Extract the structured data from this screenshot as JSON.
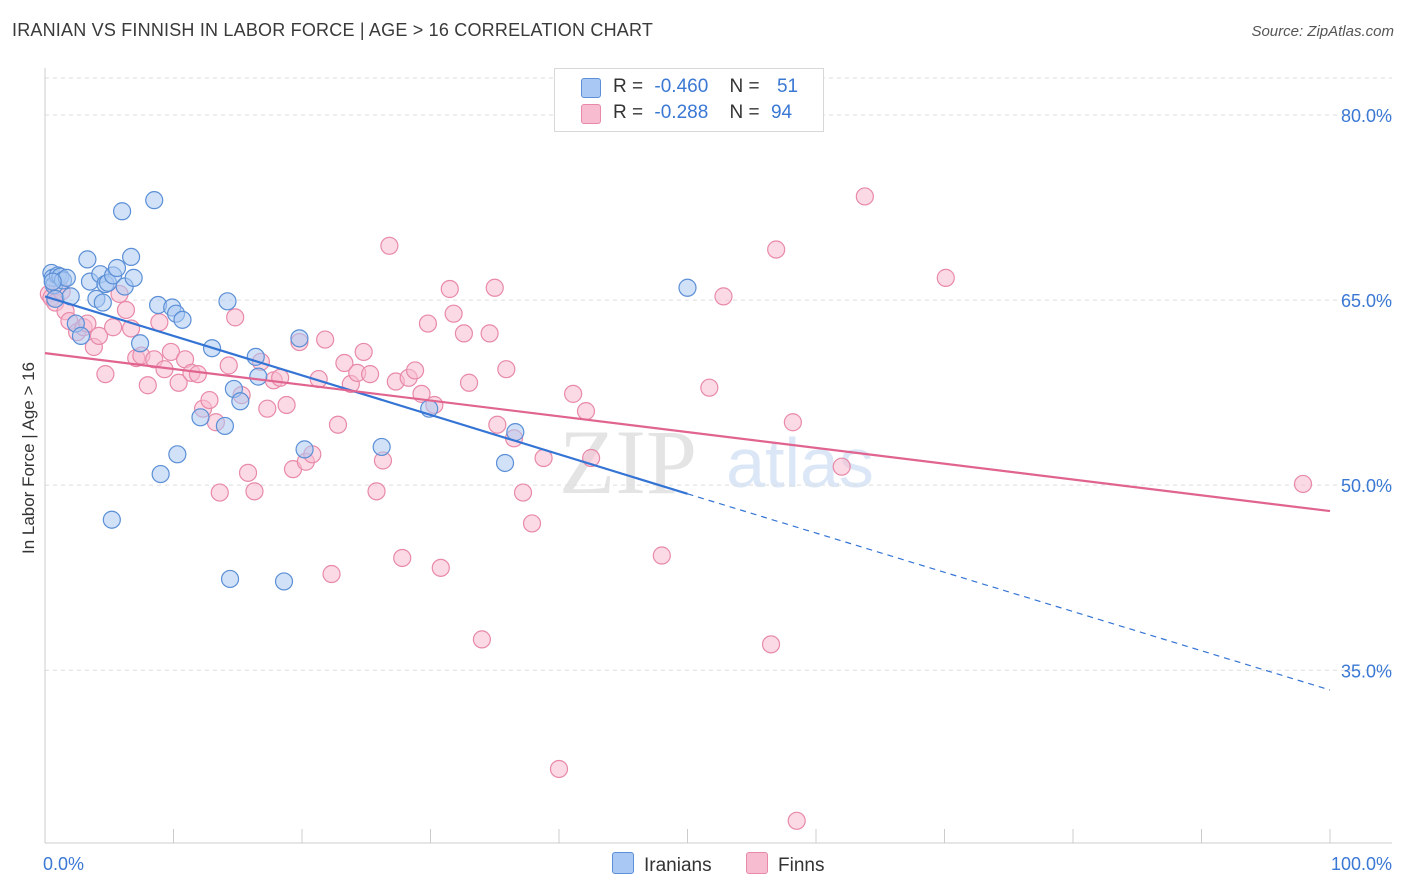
{
  "title": "IRANIAN VS FINNISH IN LABOR FORCE | AGE > 16 CORRELATION CHART",
  "source": "Source: ZipAtlas.com",
  "watermark": {
    "zip": "ZIP",
    "atlas": "atlas"
  },
  "legend_top": {
    "rows": [
      {
        "r_label": "R =",
        "r_value": "-0.460",
        "n_label": "N =",
        "n_value": "51"
      },
      {
        "r_label": "R =",
        "r_value": "-0.288",
        "n_label": "N =",
        "n_value": "94"
      }
    ]
  },
  "legend_bottom": {
    "iranians": "Iranians",
    "finns": "Finns"
  },
  "colors": {
    "iranians_fill": "#a9c8f3",
    "iranians_stroke": "#5b8fd6",
    "iranians_line": "#3474d4",
    "finns_fill": "#f7bcd0",
    "finns_stroke": "#e889a8",
    "finns_line": "#e0648f",
    "tick_label": "#3a78d4",
    "grid": "#dedede",
    "axis": "#cccccc"
  },
  "chart_data": {
    "type": "scatter",
    "title": "IRANIAN VS FINNISH IN LABOR FORCE | AGE > 16 CORRELATION CHART",
    "xlabel": "",
    "ylabel": "In Labor Force | Age > 16",
    "x_tick_labels": [
      "0.0%",
      "100.0%"
    ],
    "y_tick_labels": [
      "80.0%",
      "65.0%",
      "50.0%",
      "35.0%"
    ],
    "y_ticks": [
      80,
      65,
      50,
      35
    ],
    "xlim": [
      0,
      100
    ],
    "ylim": [
      21,
      83
    ],
    "grid": true,
    "series": [
      {
        "name": "Iranians",
        "r": -0.46,
        "n": 51,
        "trend": {
          "x0": 0,
          "y0": 65.3,
          "x1": 50,
          "y1": 49.3,
          "dash_to_x": 100,
          "dash_to_y": 33.4
        },
        "points": [
          [
            0.5,
            67.2
          ],
          [
            0.6,
            66.8
          ],
          [
            0.7,
            66.2
          ],
          [
            0.8,
            65.1
          ],
          [
            1.0,
            67.0
          ],
          [
            1.2,
            66.9
          ],
          [
            1.4,
            66.6
          ],
          [
            1.7,
            66.8
          ],
          [
            2.0,
            65.3
          ],
          [
            2.4,
            63.1
          ],
          [
            2.8,
            62.1
          ],
          [
            3.3,
            68.3
          ],
          [
            3.5,
            66.5
          ],
          [
            4.0,
            65.1
          ],
          [
            4.3,
            67.1
          ],
          [
            4.5,
            64.8
          ],
          [
            4.7,
            66.3
          ],
          [
            4.9,
            66.4
          ],
          [
            5.3,
            67.0
          ],
          [
            5.6,
            67.6
          ],
          [
            6.0,
            72.2
          ],
          [
            6.2,
            66.1
          ],
          [
            6.7,
            68.5
          ],
          [
            6.9,
            66.8
          ],
          [
            7.4,
            61.5
          ],
          [
            8.5,
            73.1
          ],
          [
            8.8,
            64.6
          ],
          [
            9.0,
            50.9
          ],
          [
            9.9,
            64.4
          ],
          [
            10.2,
            63.9
          ],
          [
            10.3,
            52.5
          ],
          [
            10.7,
            63.4
          ],
          [
            12.1,
            55.5
          ],
          [
            13.0,
            61.1
          ],
          [
            14.0,
            54.8
          ],
          [
            14.2,
            64.9
          ],
          [
            14.4,
            42.4
          ],
          [
            14.7,
            57.8
          ],
          [
            15.2,
            56.8
          ],
          [
            16.4,
            60.4
          ],
          [
            16.6,
            58.8
          ],
          [
            18.6,
            42.2
          ],
          [
            19.8,
            61.9
          ],
          [
            20.2,
            52.9
          ],
          [
            26.2,
            53.1
          ],
          [
            29.9,
            56.2
          ],
          [
            35.8,
            51.8
          ],
          [
            36.6,
            54.3
          ],
          [
            50.0,
            66.0
          ],
          [
            5.2,
            47.2
          ],
          [
            0.6,
            66.5
          ]
        ]
      },
      {
        "name": "Finns",
        "r": -0.288,
        "n": 94,
        "trend": {
          "x0": 0,
          "y0": 60.7,
          "x1": 100,
          "y1": 47.9
        },
        "points": [
          [
            0.3,
            65.5
          ],
          [
            0.5,
            65.2
          ],
          [
            0.8,
            64.8
          ],
          [
            1.0,
            66.1
          ],
          [
            1.3,
            65.7
          ],
          [
            1.6,
            64.1
          ],
          [
            1.9,
            63.3
          ],
          [
            2.5,
            62.4
          ],
          [
            3.0,
            62.8
          ],
          [
            3.3,
            63.1
          ],
          [
            3.8,
            61.2
          ],
          [
            4.2,
            62.1
          ],
          [
            4.7,
            59.0
          ],
          [
            5.3,
            62.8
          ],
          [
            5.8,
            65.5
          ],
          [
            6.3,
            64.2
          ],
          [
            6.7,
            62.7
          ],
          [
            7.1,
            60.3
          ],
          [
            7.5,
            60.5
          ],
          [
            8.0,
            58.1
          ],
          [
            8.5,
            60.2
          ],
          [
            8.9,
            63.2
          ],
          [
            9.3,
            59.4
          ],
          [
            9.8,
            60.8
          ],
          [
            10.4,
            58.3
          ],
          [
            10.9,
            60.2
          ],
          [
            11.4,
            59.1
          ],
          [
            11.9,
            59.0
          ],
          [
            12.3,
            56.2
          ],
          [
            12.8,
            56.9
          ],
          [
            13.3,
            55.1
          ],
          [
            13.6,
            49.4
          ],
          [
            14.3,
            59.7
          ],
          [
            14.8,
            63.6
          ],
          [
            15.3,
            57.3
          ],
          [
            15.8,
            51.0
          ],
          [
            16.3,
            49.5
          ],
          [
            16.8,
            60.0
          ],
          [
            17.3,
            56.2
          ],
          [
            17.8,
            58.5
          ],
          [
            18.3,
            58.7
          ],
          [
            18.8,
            56.5
          ],
          [
            19.3,
            51.3
          ],
          [
            19.8,
            61.6
          ],
          [
            20.3,
            51.9
          ],
          [
            20.8,
            52.5
          ],
          [
            21.3,
            58.6
          ],
          [
            21.8,
            61.8
          ],
          [
            22.3,
            42.8
          ],
          [
            22.8,
            54.9
          ],
          [
            23.3,
            59.9
          ],
          [
            23.8,
            58.2
          ],
          [
            24.3,
            59.1
          ],
          [
            24.8,
            60.8
          ],
          [
            25.3,
            59.0
          ],
          [
            25.8,
            49.5
          ],
          [
            26.3,
            52.0
          ],
          [
            26.8,
            69.4
          ],
          [
            27.3,
            58.4
          ],
          [
            27.8,
            44.1
          ],
          [
            28.3,
            58.7
          ],
          [
            28.8,
            59.3
          ],
          [
            29.3,
            57.4
          ],
          [
            29.8,
            63.1
          ],
          [
            30.3,
            56.5
          ],
          [
            30.8,
            43.3
          ],
          [
            31.5,
            65.9
          ],
          [
            31.8,
            63.9
          ],
          [
            32.6,
            62.3
          ],
          [
            33.0,
            58.3
          ],
          [
            34.0,
            37.5
          ],
          [
            34.6,
            62.3
          ],
          [
            35.0,
            66.0
          ],
          [
            35.2,
            54.9
          ],
          [
            35.9,
            59.4
          ],
          [
            36.5,
            53.8
          ],
          [
            37.2,
            49.4
          ],
          [
            37.9,
            46.9
          ],
          [
            38.8,
            52.2
          ],
          [
            40.0,
            27.0
          ],
          [
            41.1,
            57.4
          ],
          [
            42.1,
            56.0
          ],
          [
            42.5,
            52.2
          ],
          [
            48.0,
            44.3
          ],
          [
            51.7,
            57.9
          ],
          [
            52.8,
            65.3
          ],
          [
            56.5,
            37.1
          ],
          [
            56.9,
            69.1
          ],
          [
            58.2,
            55.1
          ],
          [
            58.5,
            22.8
          ],
          [
            62.0,
            51.5
          ],
          [
            63.8,
            73.4
          ],
          [
            70.1,
            66.8
          ],
          [
            97.9,
            50.1
          ]
        ]
      }
    ]
  }
}
